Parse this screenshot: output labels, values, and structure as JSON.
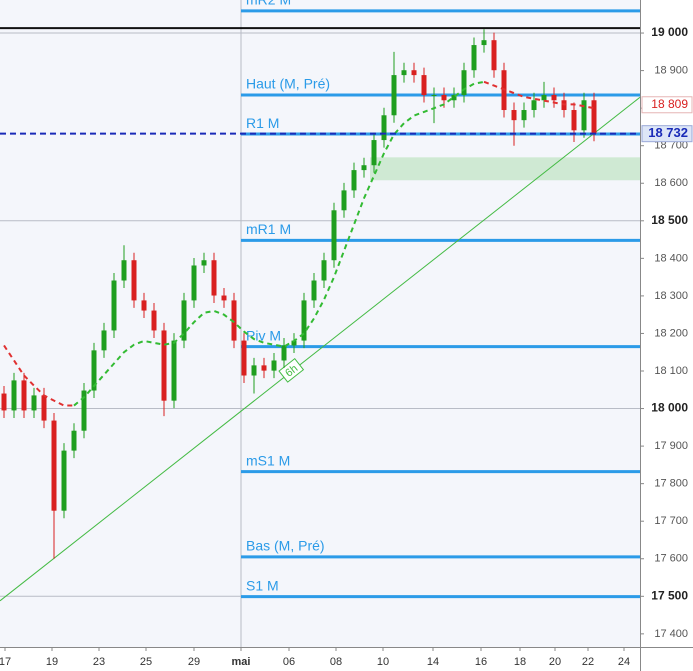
{
  "chart_data": {
    "type": "candlestick",
    "up_color": "#1f9e1f",
    "down_color": "#d92020",
    "xlim": [
      -0.4,
      63.6
    ],
    "ylim": [
      17365,
      19088
    ],
    "xticks": [
      {
        "value": 0.1,
        "label": "17"
      },
      {
        "value": 4.8,
        "label": "19"
      },
      {
        "value": 9.5,
        "label": "23"
      },
      {
        "value": 14.2,
        "label": "25"
      },
      {
        "value": 19,
        "label": "29"
      },
      {
        "value": 23.7,
        "label": "mai"
      },
      {
        "value": 28.5,
        "label": "06"
      },
      {
        "value": 33.2,
        "label": "08"
      },
      {
        "value": 37.9,
        "label": "10"
      },
      {
        "value": 42.9,
        "label": "14"
      },
      {
        "value": 47.7,
        "label": "16"
      },
      {
        "value": 51.6,
        "label": "18"
      },
      {
        "value": 55.1,
        "label": "20"
      },
      {
        "value": 58.4,
        "label": "22"
      },
      {
        "value": 62,
        "label": "24"
      }
    ],
    "yticks": [
      {
        "value": 17400,
        "label": "17 400"
      },
      {
        "value": 17500,
        "label": "17 500"
      },
      {
        "value": 17600,
        "label": "17 600"
      },
      {
        "value": 17700,
        "label": "17 700"
      },
      {
        "value": 17800,
        "label": "17 800"
      },
      {
        "value": 17900,
        "label": "17 900"
      },
      {
        "value": 18000,
        "label": "18 000"
      },
      {
        "value": 18100,
        "label": "18 100"
      },
      {
        "value": 18200,
        "label": "18 200"
      },
      {
        "value": 18300,
        "label": "18 300"
      },
      {
        "value": 18400,
        "label": "18 400"
      },
      {
        "value": 18500,
        "label": "18 500"
      },
      {
        "value": 18600,
        "label": "18 600"
      },
      {
        "value": 18700,
        "label": "18 700"
      },
      {
        "value": 18800,
        "label": "18 800"
      },
      {
        "value": 18900,
        "label": "18 900"
      },
      {
        "value": 19000,
        "label": "19 000"
      }
    ],
    "bold_ticks": [
      17500,
      18000,
      18500,
      19000
    ],
    "separator_x": 23.7,
    "reference_line": 19013,
    "open": [
      18040,
      17995,
      18075,
      17995,
      18035,
      17968,
      17728,
      17888,
      17941,
      18048,
      18155,
      18208,
      18341,
      18395,
      18288,
      18261,
      18208,
      18021,
      18181,
      18288,
      18381,
      18395,
      18301,
      18288,
      18181,
      18088,
      18115,
      18101,
      18128,
      18168,
      18181,
      18288,
      18341,
      18395,
      18528,
      18581,
      18635,
      18648,
      18715,
      18781,
      18888,
      18901,
      18888,
      18835,
      18835,
      18821,
      18835,
      18901,
      18968,
      18981,
      18901,
      18795,
      18768,
      18795,
      18821,
      18835,
      18821,
      18795,
      18741,
      18821
    ],
    "high": [
      18060,
      18095,
      18095,
      18055,
      18055,
      17988,
      17908,
      17961,
      18068,
      18175,
      18228,
      18361,
      18435,
      18415,
      18308,
      18281,
      18228,
      18201,
      18308,
      18401,
      18415,
      18415,
      18321,
      18308,
      18201,
      18135,
      18135,
      18148,
      18188,
      18201,
      18308,
      18361,
      18415,
      18548,
      18601,
      18655,
      18668,
      18735,
      18801,
      18950,
      18921,
      18921,
      18908,
      18855,
      18855,
      18855,
      18921,
      18988,
      19010,
      19001,
      18921,
      18815,
      18815,
      18841,
      18870,
      18855,
      18841,
      18815,
      18841,
      18841
    ],
    "low": [
      17975,
      17975,
      17975,
      17975,
      17948,
      17600,
      17708,
      17868,
      17921,
      18028,
      18135,
      18188,
      18321,
      18268,
      18241,
      18188,
      17980,
      18001,
      18161,
      18268,
      18361,
      18281,
      18268,
      18161,
      18068,
      18040,
      18081,
      18081,
      18108,
      18148,
      18161,
      18268,
      18321,
      18375,
      18508,
      18561,
      18615,
      18628,
      18695,
      18761,
      18868,
      18868,
      18815,
      18760,
      18801,
      18801,
      18815,
      18881,
      18948,
      18881,
      18775,
      18700,
      18748,
      18775,
      18801,
      18801,
      18775,
      18710,
      18721,
      18712
    ],
    "close": [
      17995,
      18075,
      17995,
      18035,
      17968,
      17728,
      17888,
      17941,
      18048,
      18155,
      18208,
      18341,
      18395,
      18288,
      18261,
      18208,
      18021,
      18181,
      18288,
      18381,
      18395,
      18301,
      18288,
      18181,
      18088,
      18115,
      18101,
      18128,
      18168,
      18181,
      18288,
      18341,
      18395,
      18528,
      18581,
      18635,
      18648,
      18715,
      18781,
      18888,
      18901,
      18888,
      18835,
      18835,
      18821,
      18835,
      18901,
      18968,
      18981,
      18901,
      18795,
      18768,
      18795,
      18821,
      18835,
      18821,
      18795,
      18741,
      18821,
      18732
    ],
    "series": [
      {
        "color": "#33bb33",
        "values": [
          null,
          null,
          null,
          null,
          null,
          null,
          null,
          18008,
          18030,
          18060,
          18090,
          18120,
          18150,
          18170,
          18180,
          18175,
          18170,
          18175,
          18200,
          18230,
          18255,
          18260,
          18250,
          18230,
          18205,
          18185,
          18175,
          18170,
          18165,
          18180,
          18200,
          18240,
          18290,
          18350,
          18420,
          18490,
          18560,
          18620,
          18680,
          18730,
          18760,
          18780,
          18790,
          18800,
          18810,
          18830,
          18850,
          18865,
          18870,
          null,
          null,
          null,
          null,
          null,
          null,
          null,
          null,
          null,
          null,
          null
        ]
      },
      {
        "color": "#e03030",
        "values": [
          18168,
          18128,
          18088,
          18061,
          18035,
          18021,
          18008,
          18008,
          null,
          null,
          null,
          null,
          null,
          null,
          null,
          null,
          null,
          null,
          null,
          null,
          null,
          null,
          null,
          null,
          null,
          null,
          null,
          null,
          null,
          null,
          null,
          null,
          null,
          null,
          null,
          null,
          null,
          null,
          null,
          null,
          null,
          null,
          null,
          null,
          null,
          null,
          null,
          null,
          18870,
          18860,
          18850,
          18840,
          18830,
          18825,
          18820,
          18815,
          18810,
          18810,
          18805,
          18800
        ]
      }
    ],
    "trendline": {
      "x": [
        -0.4,
        63.6
      ],
      "values": [
        17488,
        18829
      ],
      "color": "#44bb44",
      "label": "6h"
    },
    "zone": {
      "x": [
        36.6,
        63.6
      ],
      "values": [
        18608,
        18669
      ],
      "color": "#cfe9d3"
    },
    "levels": [
      {
        "name": "mR2 M",
        "value": 19059
      },
      {
        "name": "Haut (M, Pré)",
        "value": 18835
      },
      {
        "name": "R1 M",
        "value": 18731
      },
      {
        "name": "mR1 M",
        "value": 18448
      },
      {
        "name": "Piv M",
        "value": 18165
      },
      {
        "name": "mS1 M",
        "value": 17832
      },
      {
        "name": "Bas (M, Pré)",
        "value": 17605
      },
      {
        "name": "S1 M",
        "value": 17499
      }
    ],
    "level_color": "#2b9be8",
    "price_tags": [
      {
        "value": 18809,
        "label": "18 809",
        "color": "#d92020"
      },
      {
        "value": 18732,
        "label": "18 732",
        "color": "#1a2bb8"
      }
    ]
  }
}
